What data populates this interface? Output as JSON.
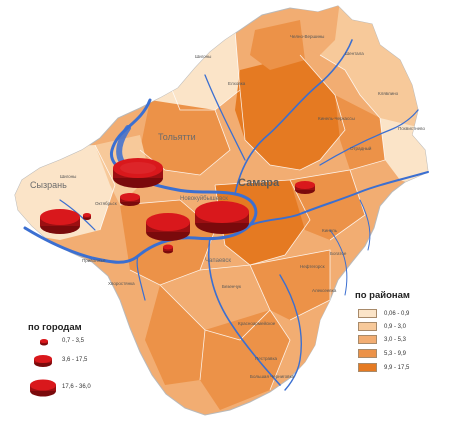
{
  "colors": {
    "district_classes": [
      "#fbe4c8",
      "#f7c99a",
      "#f2ad72",
      "#ec9248",
      "#e57a22"
    ],
    "river": "#3b6fd1",
    "boundary": "#ffffff",
    "circle": "#d9181c",
    "circle_shadow": "#7a0a0c"
  },
  "map_labels": {
    "samara": "Самара",
    "tolyatti": "Тольятти",
    "syzran": "Сызрань",
    "novokuybyshevsk": "Новокуйбышевск",
    "chapaevsk": "Чапаевск"
  },
  "legend": {
    "cities": {
      "title": "по городам",
      "items": [
        {
          "label": "0,7 - 3,5",
          "size": "small"
        },
        {
          "label": "3,6 - 17,5",
          "size": "medium"
        },
        {
          "label": "17,6 - 36,0",
          "size": "large"
        }
      ]
    },
    "districts": {
      "title": "по районам",
      "items": [
        {
          "label": "0,06 - 0,9",
          "class": 0
        },
        {
          "label": "0,9 - 3,0",
          "class": 1
        },
        {
          "label": "3,0 - 5,3",
          "class": 2
        },
        {
          "label": "5,3 - 9,9",
          "class": 3
        },
        {
          "label": "9,9 - 17,5",
          "class": 4
        }
      ]
    }
  }
}
